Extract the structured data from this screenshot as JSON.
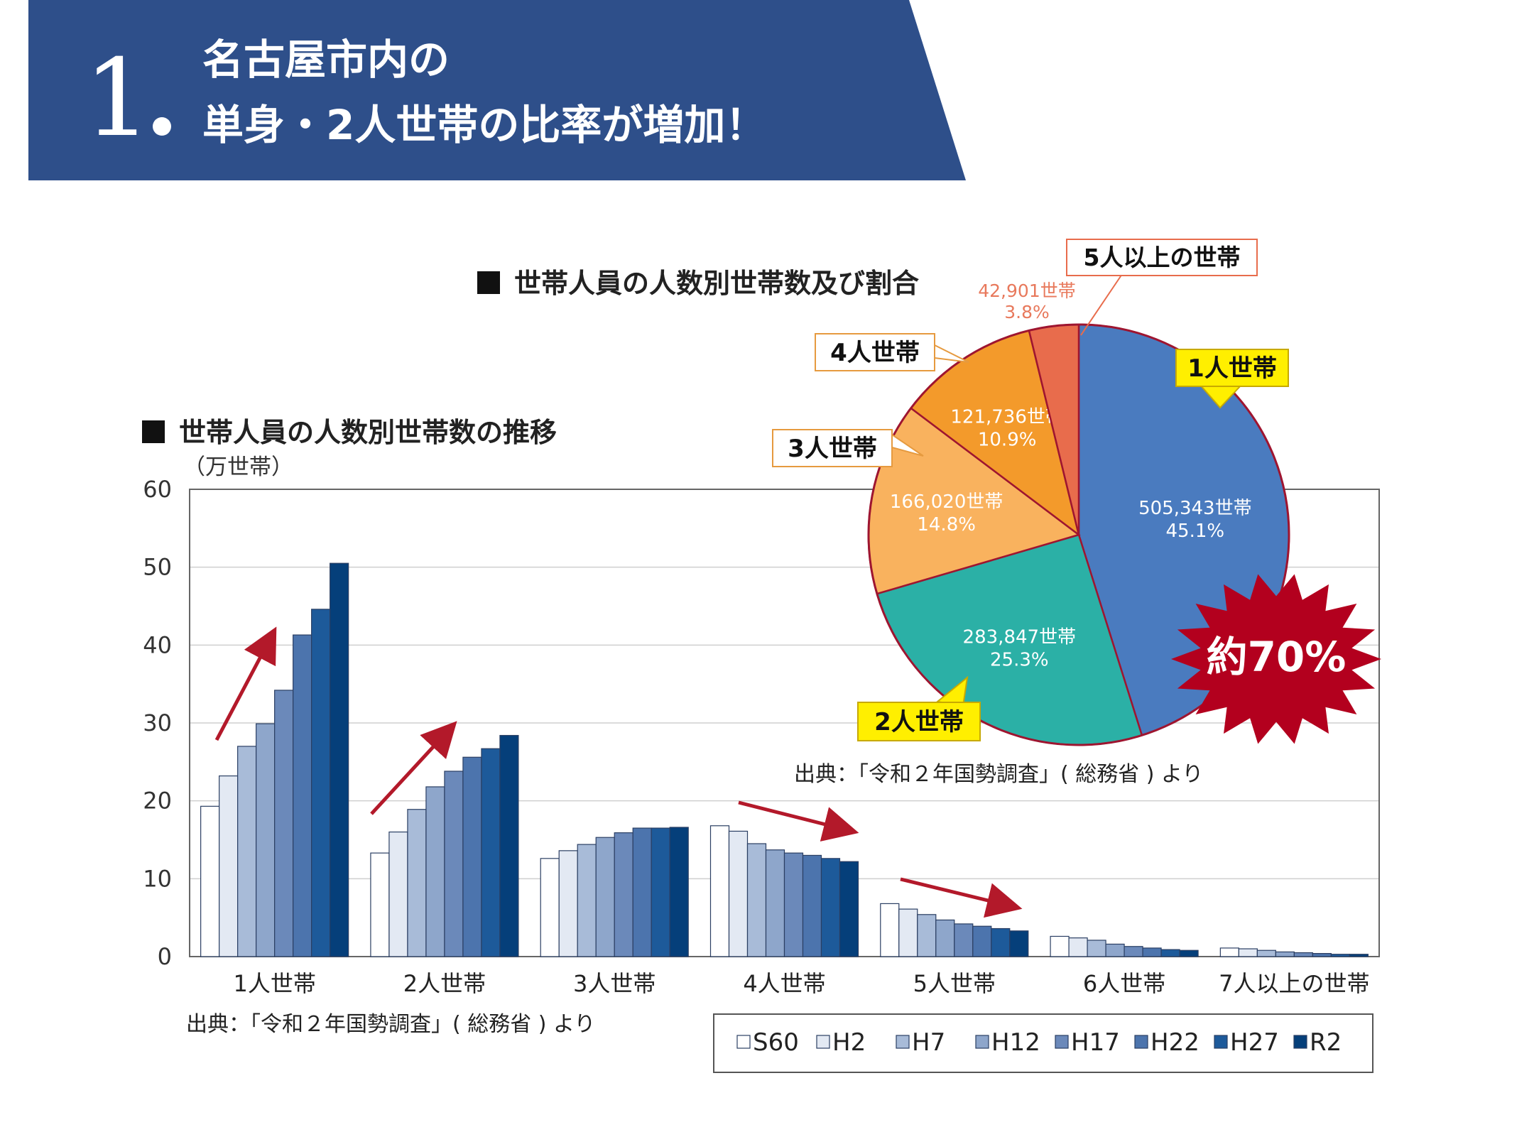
{
  "header": {
    "number": "1",
    "line1": "名古屋市内の",
    "line2": "単身・2人世帯の比率が増加！"
  },
  "bar_title": "世帯人員の人数別世帯数の推移",
  "pie_title": "世帯人員の人数別世帯数及び割合",
  "bar_source": "出典：「令和２年国勢調査」( 総務省 ) より",
  "pie_source": "出典：「令和２年国勢調査」( 総務省 ) より",
  "burst_label": "約70%",
  "colors": {
    "header_bg": "#2e4f8a",
    "arrow": "#b3192a",
    "burst": "#b3001e",
    "pie_outline": "#9e1530"
  },
  "chart_data": [
    {
      "type": "bar",
      "ylabel": "（万世帯）",
      "ylim": [
        0,
        60
      ],
      "yticks": [
        "0",
        "10",
        "20",
        "30",
        "40",
        "50",
        "60"
      ],
      "categories": [
        "1人世帯",
        "2人世帯",
        "3人世帯",
        "4人世帯",
        "5人世帯",
        "6人世帯",
        "7人以上の世帯"
      ],
      "legend_position": "bottom-right",
      "series": [
        {
          "name": "S60",
          "color": "#ffffff",
          "values": [
            19.3,
            13.3,
            12.6,
            16.8,
            6.8,
            2.6,
            1.1
          ]
        },
        {
          "name": "H2",
          "color": "#e3e9f3",
          "values": [
            23.2,
            16.0,
            13.6,
            16.1,
            6.1,
            2.4,
            1.0
          ]
        },
        {
          "name": "H7",
          "color": "#a8bbd8",
          "values": [
            27.0,
            18.9,
            14.4,
            14.5,
            5.4,
            2.1,
            0.8
          ]
        },
        {
          "name": "H12",
          "color": "#8ea6cb",
          "values": [
            29.9,
            21.8,
            15.3,
            13.7,
            4.7,
            1.6,
            0.6
          ]
        },
        {
          "name": "H17",
          "color": "#6b89ba",
          "values": [
            34.2,
            23.8,
            15.9,
            13.3,
            4.2,
            1.3,
            0.5
          ]
        },
        {
          "name": "H22",
          "color": "#4c74ad",
          "values": [
            41.3,
            25.6,
            16.5,
            13.0,
            3.9,
            1.1,
            0.4
          ]
        },
        {
          "name": "H27",
          "color": "#1d5a9a",
          "values": [
            44.6,
            26.7,
            16.5,
            12.6,
            3.6,
            0.9,
            0.3
          ]
        },
        {
          "name": "R2",
          "color": "#053f7a",
          "values": [
            50.5,
            28.4,
            16.6,
            12.2,
            3.3,
            0.8,
            0.3
          ]
        }
      ]
    },
    {
      "type": "pie",
      "slices": [
        {
          "name": "1人世帯",
          "count": "505,343世帯",
          "pct_label": "45.1%",
          "value": 45.1,
          "color": "#4a7bbf"
        },
        {
          "name": "2人世帯",
          "count": "283,847世帯",
          "pct_label": "25.3%",
          "value": 25.3,
          "color": "#2bb0a6"
        },
        {
          "name": "3人世帯",
          "count": "166,020世帯",
          "pct_label": "14.8%",
          "value": 14.8,
          "color": "#f9b25e"
        },
        {
          "name": "4人世帯",
          "count": "121,736世帯",
          "pct_label": "10.9%",
          "value": 10.9,
          "color": "#f39a2b"
        },
        {
          "name": "5人以上の世帯",
          "count": "42,901世帯",
          "pct_label": "3.8%",
          "value": 3.8,
          "color": "#e86c4c"
        }
      ]
    }
  ]
}
